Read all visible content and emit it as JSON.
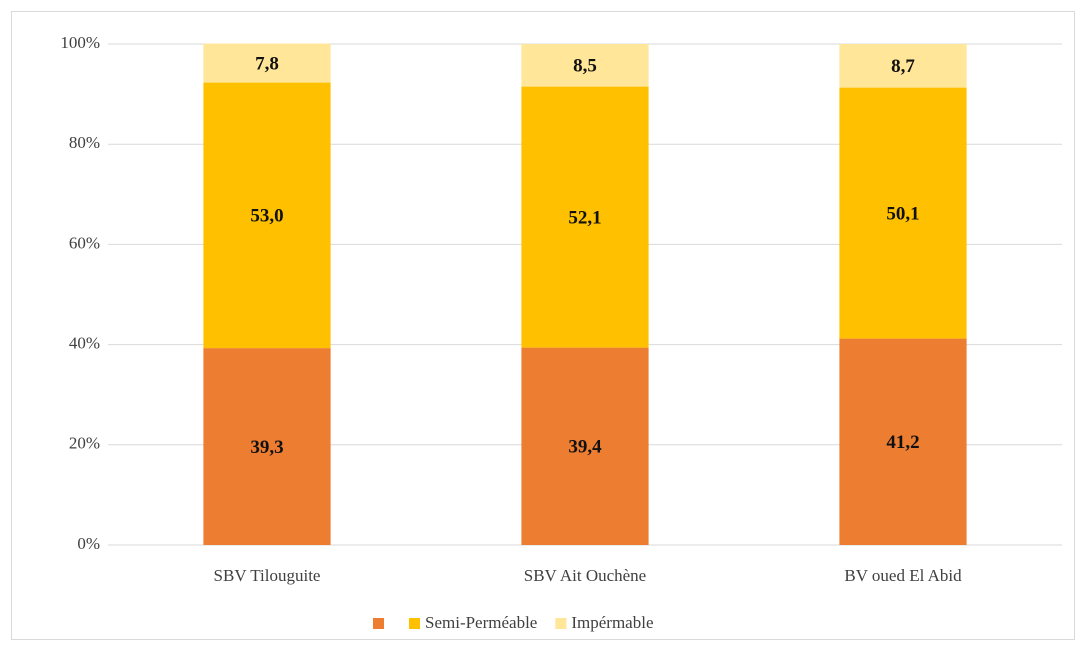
{
  "chart_data": {
    "type": "stacked_bar",
    "categories": [
      "SBV Tilouguite",
      "SBV Ait Ouchène",
      "BV oued El Abid"
    ],
    "series": [
      {
        "name": null,
        "color": "#ed7d31",
        "values": [
          39.3,
          39.4,
          41.2
        ],
        "value_labels": [
          "39,3",
          "39,4",
          "41,2"
        ]
      },
      {
        "name": "Semi-Perméable",
        "color": "#ffc000",
        "values": [
          53.0,
          52.1,
          50.1
        ],
        "value_labels": [
          "53,0",
          "52,1",
          "50,1"
        ]
      },
      {
        "name": "Impérmable",
        "color": "#ffe699",
        "values": [
          7.8,
          8.5,
          8.7
        ],
        "value_labels": [
          "7,8",
          "8,5",
          "8,7"
        ]
      }
    ],
    "ylim": [
      0,
      100
    ],
    "yticks": [
      {
        "value": 0,
        "label": "0%"
      },
      {
        "value": 20,
        "label": "20%"
      },
      {
        "value": 40,
        "label": "40%"
      },
      {
        "value": 60,
        "label": "60%"
      },
      {
        "value": 80,
        "label": "80%"
      },
      {
        "value": 100,
        "label": "100%"
      }
    ],
    "grid": true,
    "legend": "bottom"
  }
}
